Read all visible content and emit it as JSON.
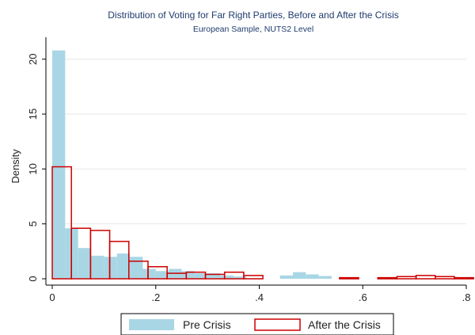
{
  "chart_data": {
    "type": "bar",
    "title": "Distribution of Voting for Far Right Parties, Before and After the Crisis",
    "subtitle": "European Sample, NUTS2 Level",
    "xlabel": "",
    "ylabel": "Density",
    "xlim": [
      0,
      0.8
    ],
    "ylim": [
      0,
      22
    ],
    "x_ticks": [
      0,
      0.2,
      0.4,
      0.6,
      0.8
    ],
    "x_tick_labels": [
      "0",
      ".2",
      ".4",
      ".6",
      ".8"
    ],
    "y_ticks": [
      0,
      5,
      10,
      15,
      20
    ],
    "y_tick_labels": [
      "0",
      "5",
      "10",
      "15",
      "20"
    ],
    "grid": true,
    "legend_position": "bottom",
    "series": [
      {
        "name": "Pre Crisis",
        "style": "filled",
        "color": "#a9d6e5",
        "bins": [
          {
            "x0": 0.0,
            "x1": 0.025,
            "density": 20.8
          },
          {
            "x0": 0.025,
            "x1": 0.05,
            "density": 4.6
          },
          {
            "x0": 0.05,
            "x1": 0.075,
            "density": 2.8
          },
          {
            "x0": 0.075,
            "x1": 0.1,
            "density": 2.1
          },
          {
            "x0": 0.1,
            "x1": 0.125,
            "density": 2.0
          },
          {
            "x0": 0.125,
            "x1": 0.15,
            "density": 2.3
          },
          {
            "x0": 0.15,
            "x1": 0.175,
            "density": 2.0
          },
          {
            "x0": 0.175,
            "x1": 0.2,
            "density": 0.9
          },
          {
            "x0": 0.2,
            "x1": 0.225,
            "density": 0.7
          },
          {
            "x0": 0.225,
            "x1": 0.25,
            "density": 0.9
          },
          {
            "x0": 0.25,
            "x1": 0.275,
            "density": 0.7
          },
          {
            "x0": 0.275,
            "x1": 0.3,
            "density": 0.5
          },
          {
            "x0": 0.3,
            "x1": 0.325,
            "density": 0.5
          },
          {
            "x0": 0.325,
            "x1": 0.35,
            "density": 0.3
          },
          {
            "x0": 0.35,
            "x1": 0.375,
            "density": 0.2
          },
          {
            "x0": 0.44,
            "x1": 0.465,
            "density": 0.3
          },
          {
            "x0": 0.465,
            "x1": 0.49,
            "density": 0.6
          },
          {
            "x0": 0.49,
            "x1": 0.515,
            "density": 0.4
          },
          {
            "x0": 0.515,
            "x1": 0.54,
            "density": 0.25
          }
        ]
      },
      {
        "name": "After the Crisis",
        "style": "outline",
        "color": "#cc0000",
        "bins": [
          {
            "x0": 0.0,
            "x1": 0.037,
            "density": 10.2
          },
          {
            "x0": 0.037,
            "x1": 0.074,
            "density": 4.6
          },
          {
            "x0": 0.074,
            "x1": 0.111,
            "density": 4.4
          },
          {
            "x0": 0.111,
            "x1": 0.148,
            "density": 3.4
          },
          {
            "x0": 0.148,
            "x1": 0.185,
            "density": 1.6
          },
          {
            "x0": 0.185,
            "x1": 0.222,
            "density": 1.1
          },
          {
            "x0": 0.222,
            "x1": 0.259,
            "density": 0.5
          },
          {
            "x0": 0.259,
            "x1": 0.296,
            "density": 0.6
          },
          {
            "x0": 0.296,
            "x1": 0.333,
            "density": 0.4
          },
          {
            "x0": 0.333,
            "x1": 0.37,
            "density": 0.6
          },
          {
            "x0": 0.37,
            "x1": 0.407,
            "density": 0.3
          },
          {
            "x0": 0.555,
            "x1": 0.592,
            "density": 0.1
          },
          {
            "x0": 0.629,
            "x1": 0.666,
            "density": 0.1
          },
          {
            "x0": 0.666,
            "x1": 0.703,
            "density": 0.2
          },
          {
            "x0": 0.703,
            "x1": 0.74,
            "density": 0.3
          },
          {
            "x0": 0.74,
            "x1": 0.777,
            "density": 0.2
          },
          {
            "x0": 0.777,
            "x1": 0.814,
            "density": 0.1
          }
        ]
      }
    ]
  }
}
